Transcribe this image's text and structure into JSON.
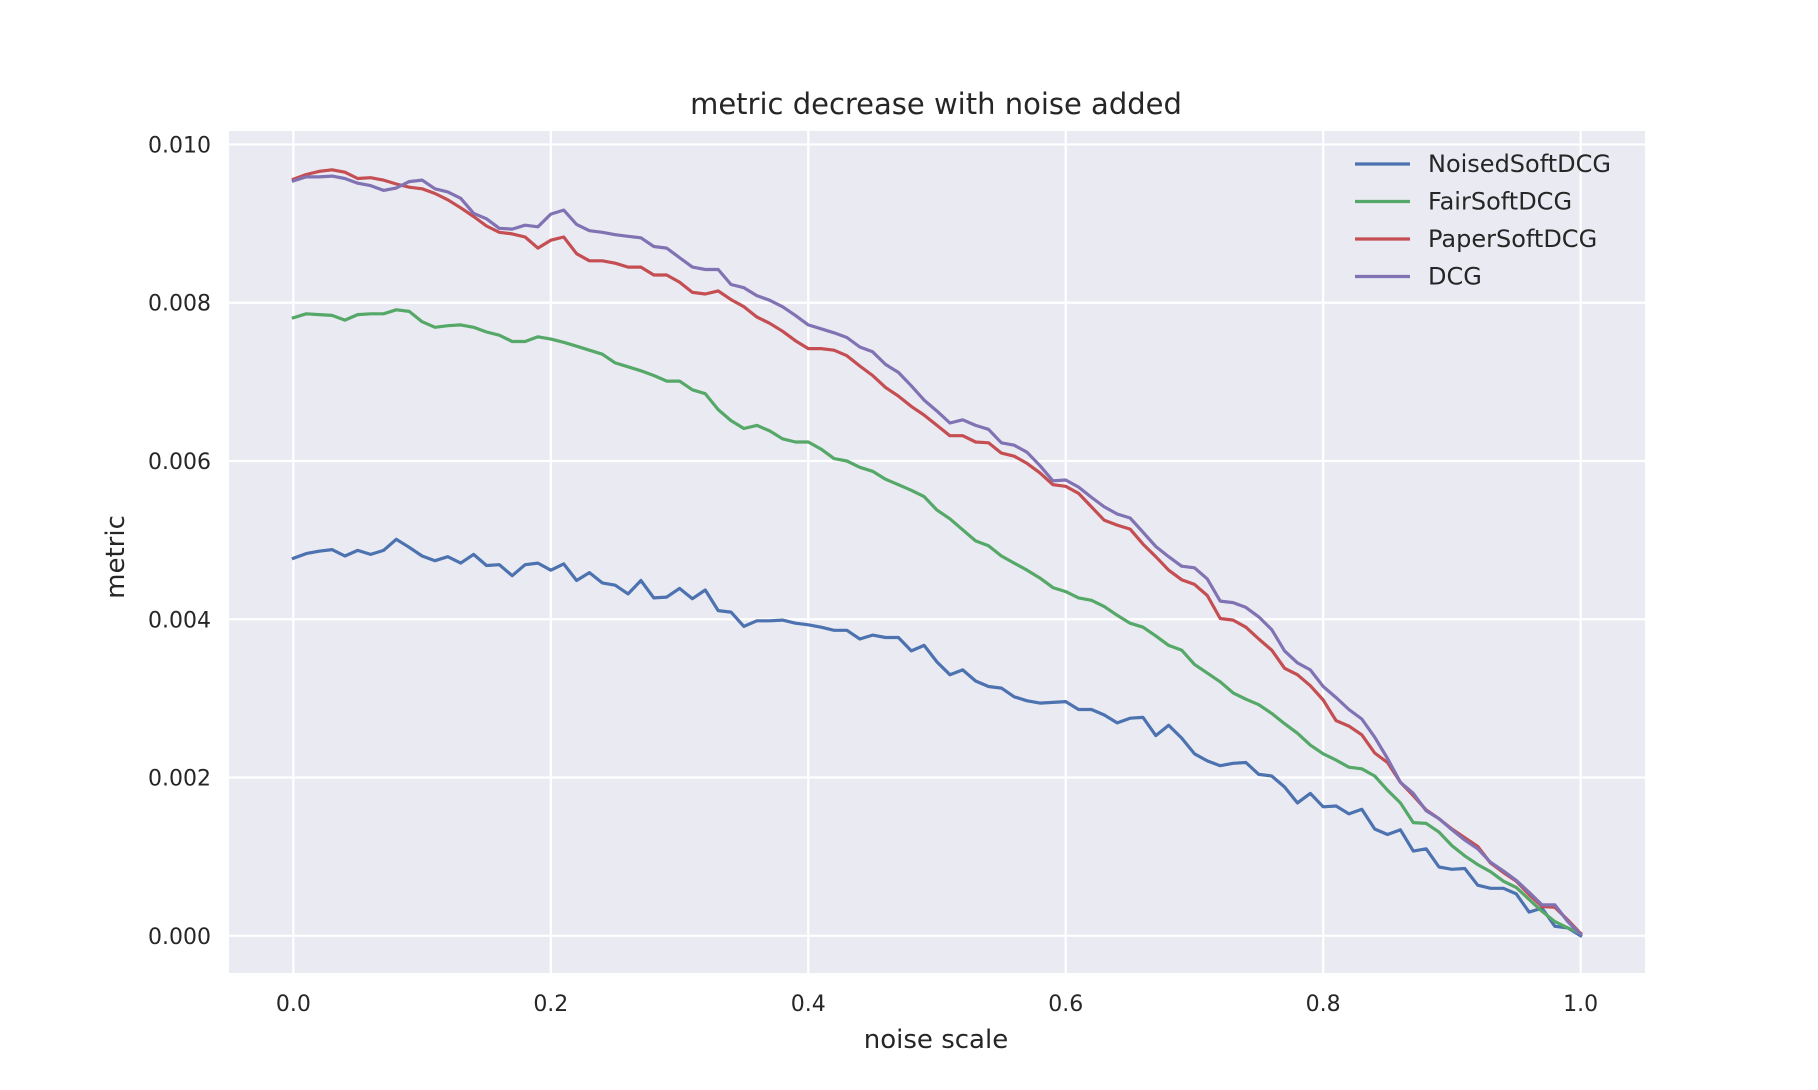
{
  "chart_data": {
    "type": "line",
    "title": "metric decrease with noise added",
    "xlabel": "noise scale",
    "ylabel": "metric",
    "xlim": [
      -0.05,
      1.05
    ],
    "ylim": [
      -0.00047,
      0.01017
    ],
    "xticks": [
      0.0,
      0.2,
      0.4,
      0.6,
      0.8,
      1.0
    ],
    "xtick_labels": [
      "0.0",
      "0.2",
      "0.4",
      "0.6",
      "0.8",
      "1.0"
    ],
    "yticks": [
      0.0,
      0.002,
      0.004,
      0.006,
      0.008,
      0.01
    ],
    "ytick_labels": [
      "0.000",
      "0.002",
      "0.004",
      "0.006",
      "0.008",
      "0.010"
    ],
    "grid": true,
    "legend_position": "top-right",
    "x": [
      0.0,
      0.01,
      0.02,
      0.03,
      0.04,
      0.05,
      0.06,
      0.07,
      0.08,
      0.09,
      0.1,
      0.11,
      0.12,
      0.13,
      0.14,
      0.15,
      0.16,
      0.17,
      0.18,
      0.19,
      0.2,
      0.21,
      0.22,
      0.23,
      0.24,
      0.25,
      0.26,
      0.27,
      0.28,
      0.29,
      0.3,
      0.31,
      0.32,
      0.33,
      0.34,
      0.35,
      0.36,
      0.37,
      0.38,
      0.39,
      0.4,
      0.41,
      0.42,
      0.43,
      0.44,
      0.45,
      0.46,
      0.47,
      0.48,
      0.49,
      0.5,
      0.51,
      0.52,
      0.53,
      0.54,
      0.55,
      0.56,
      0.57,
      0.58,
      0.59,
      0.6,
      0.61,
      0.62,
      0.63,
      0.64,
      0.65,
      0.66,
      0.67,
      0.68,
      0.69,
      0.7,
      0.71,
      0.72,
      0.73,
      0.74,
      0.75,
      0.76,
      0.77,
      0.78,
      0.79,
      0.8,
      0.81,
      0.82,
      0.83,
      0.84,
      0.85,
      0.86,
      0.87,
      0.88,
      0.89,
      0.9,
      0.91,
      0.92,
      0.93,
      0.94,
      0.95,
      0.96,
      0.97,
      0.98,
      0.99,
      1.0
    ],
    "series": [
      {
        "name": "NoisedSoftDCG",
        "color": "#4c72b0",
        "values": [
          0.00477,
          0.00483,
          0.00486,
          0.00488,
          0.0048,
          0.00487,
          0.00482,
          0.00487,
          0.00501,
          0.00491,
          0.0048,
          0.00474,
          0.00479,
          0.00471,
          0.00482,
          0.00468,
          0.00469,
          0.00455,
          0.00469,
          0.00471,
          0.00462,
          0.0047,
          0.00449,
          0.00459,
          0.00446,
          0.00443,
          0.00432,
          0.00449,
          0.00427,
          0.00428,
          0.00439,
          0.00426,
          0.00437,
          0.00411,
          0.00409,
          0.00391,
          0.00398,
          0.00398,
          0.00399,
          0.00395,
          0.00393,
          0.0039,
          0.00386,
          0.00386,
          0.00375,
          0.0038,
          0.00377,
          0.00377,
          0.0036,
          0.00367,
          0.00346,
          0.0033,
          0.00336,
          0.00322,
          0.00315,
          0.00313,
          0.00302,
          0.00297,
          0.00294,
          0.00295,
          0.00296,
          0.00286,
          0.00286,
          0.00279,
          0.00269,
          0.00275,
          0.00276,
          0.00253,
          0.00266,
          0.0025,
          0.0023,
          0.00221,
          0.00215,
          0.00218,
          0.00219,
          0.00204,
          0.00202,
          0.00188,
          0.00168,
          0.0018,
          0.00163,
          0.00164,
          0.00154,
          0.0016,
          0.00135,
          0.00128,
          0.00134,
          0.00107,
          0.0011,
          0.00087,
          0.00084,
          0.00085,
          0.00064,
          0.0006,
          0.0006,
          0.00053,
          0.0003,
          0.00035,
          0.00012,
          0.0001,
          0.0
        ]
      },
      {
        "name": "FairSoftDCG",
        "color": "#55a868",
        "values": [
          0.00781,
          0.00786,
          0.00785,
          0.00784,
          0.00778,
          0.00785,
          0.00786,
          0.00786,
          0.00791,
          0.00789,
          0.00776,
          0.00769,
          0.00771,
          0.00772,
          0.00769,
          0.00763,
          0.00759,
          0.00751,
          0.00751,
          0.00757,
          0.00754,
          0.0075,
          0.00745,
          0.0074,
          0.00735,
          0.00724,
          0.00719,
          0.00714,
          0.00708,
          0.00701,
          0.00701,
          0.0069,
          0.00685,
          0.00665,
          0.00651,
          0.00641,
          0.00645,
          0.00638,
          0.00628,
          0.00624,
          0.00624,
          0.00615,
          0.00603,
          0.006,
          0.00592,
          0.00587,
          0.00577,
          0.0057,
          0.00563,
          0.00555,
          0.00538,
          0.00527,
          0.00513,
          0.00499,
          0.00493,
          0.0048,
          0.00471,
          0.00462,
          0.00452,
          0.0044,
          0.00435,
          0.00427,
          0.00424,
          0.00416,
          0.00405,
          0.00395,
          0.0039,
          0.00379,
          0.00367,
          0.00361,
          0.00343,
          0.00332,
          0.00321,
          0.00307,
          0.00299,
          0.00292,
          0.00281,
          0.00268,
          0.00256,
          0.00241,
          0.0023,
          0.00222,
          0.00213,
          0.00211,
          0.00202,
          0.00184,
          0.00168,
          0.00143,
          0.00142,
          0.00131,
          0.00114,
          0.00101,
          0.0009,
          0.00081,
          0.00069,
          0.00061,
          0.00046,
          0.00031,
          0.00018,
          0.0001,
          3e-05
        ]
      },
      {
        "name": "PaperSoftDCG",
        "color": "#c44e52",
        "values": [
          0.00956,
          0.00962,
          0.00966,
          0.00968,
          0.00965,
          0.00957,
          0.00958,
          0.00955,
          0.0095,
          0.00946,
          0.00944,
          0.00938,
          0.0093,
          0.0092,
          0.00909,
          0.00897,
          0.00889,
          0.00887,
          0.00883,
          0.00869,
          0.00879,
          0.00883,
          0.00862,
          0.00853,
          0.00853,
          0.0085,
          0.00845,
          0.00845,
          0.00835,
          0.00835,
          0.00826,
          0.00813,
          0.00811,
          0.00815,
          0.00804,
          0.00795,
          0.00782,
          0.00774,
          0.00764,
          0.00752,
          0.00742,
          0.00742,
          0.0074,
          0.00733,
          0.0072,
          0.00708,
          0.00693,
          0.00682,
          0.00669,
          0.00658,
          0.00645,
          0.00632,
          0.00632,
          0.00624,
          0.00623,
          0.0061,
          0.00606,
          0.00597,
          0.00585,
          0.0057,
          0.00568,
          0.00559,
          0.00542,
          0.00525,
          0.00519,
          0.00514,
          0.00495,
          0.00479,
          0.00462,
          0.0045,
          0.00444,
          0.0043,
          0.00401,
          0.00399,
          0.0039,
          0.00375,
          0.00361,
          0.00338,
          0.0033,
          0.00316,
          0.00298,
          0.00272,
          0.00265,
          0.00254,
          0.00231,
          0.00219,
          0.00194,
          0.00177,
          0.00159,
          0.00148,
          0.00135,
          0.00124,
          0.00113,
          0.00092,
          0.0008,
          0.00069,
          0.00052,
          0.00037,
          0.00036,
          0.0002,
          3e-05
        ]
      },
      {
        "name": "DCG",
        "color": "#8172b3",
        "values": [
          0.00954,
          0.00959,
          0.00959,
          0.0096,
          0.00957,
          0.00951,
          0.00948,
          0.00942,
          0.00945,
          0.00953,
          0.00955,
          0.00944,
          0.0094,
          0.00932,
          0.00913,
          0.00906,
          0.00894,
          0.00893,
          0.00898,
          0.00896,
          0.00912,
          0.00917,
          0.00899,
          0.00891,
          0.00889,
          0.00886,
          0.00884,
          0.00882,
          0.00871,
          0.00869,
          0.00857,
          0.00845,
          0.00842,
          0.00842,
          0.00823,
          0.00819,
          0.00809,
          0.00803,
          0.00795,
          0.00784,
          0.00772,
          0.00767,
          0.00762,
          0.00756,
          0.00744,
          0.00738,
          0.00722,
          0.00712,
          0.00695,
          0.00677,
          0.00663,
          0.00648,
          0.00652,
          0.00645,
          0.0064,
          0.00623,
          0.0062,
          0.00611,
          0.00594,
          0.00575,
          0.00576,
          0.00567,
          0.00554,
          0.00542,
          0.00533,
          0.00528,
          0.0051,
          0.00492,
          0.00479,
          0.00467,
          0.00465,
          0.00451,
          0.00423,
          0.00421,
          0.00415,
          0.00403,
          0.00387,
          0.0036,
          0.00345,
          0.00336,
          0.00315,
          0.00301,
          0.00286,
          0.00274,
          0.00251,
          0.00224,
          0.00194,
          0.0018,
          0.00158,
          0.00148,
          0.00134,
          0.00121,
          0.0011,
          0.00093,
          0.00082,
          0.0007,
          0.00055,
          0.00039,
          0.00039,
          0.00018,
          2e-05
        ]
      }
    ]
  }
}
